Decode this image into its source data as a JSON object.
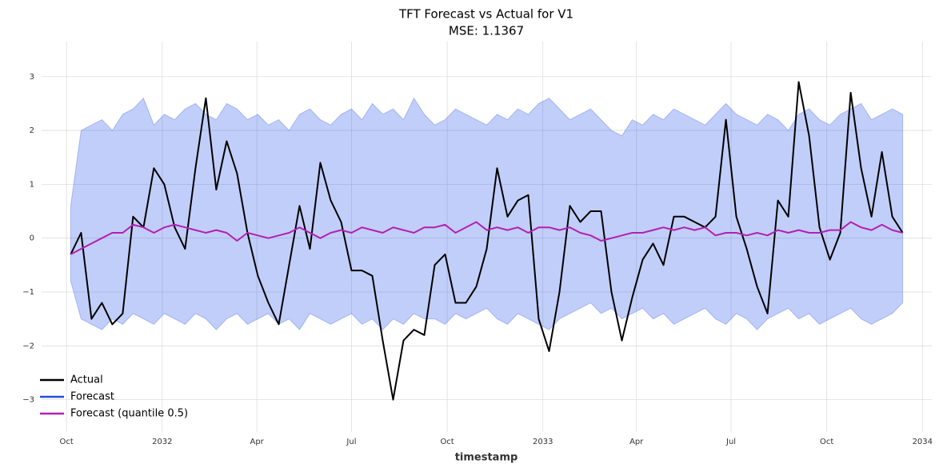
{
  "chart_data": {
    "type": "line",
    "title": "TFT Forecast vs Actual for V1",
    "subtitle": "MSE: 1.1367",
    "x_label": "timestamp",
    "x": [
      "2031-10-05",
      "2031-10-15",
      "2031-10-25",
      "2031-11-04",
      "2031-11-14",
      "2031-11-24",
      "2031-12-04",
      "2031-12-14",
      "2031-12-24",
      "2032-01-03",
      "2032-01-13",
      "2032-01-23",
      "2032-02-02",
      "2032-02-12",
      "2032-02-22",
      "2032-03-03",
      "2032-03-13",
      "2032-03-23",
      "2032-04-02",
      "2032-04-12",
      "2032-04-22",
      "2032-05-02",
      "2032-05-12",
      "2032-05-22",
      "2032-06-01",
      "2032-06-11",
      "2032-06-21",
      "2032-07-01",
      "2032-07-11",
      "2032-07-21",
      "2032-07-31",
      "2032-08-10",
      "2032-08-20",
      "2032-08-30",
      "2032-09-09",
      "2032-09-19",
      "2032-09-29",
      "2032-10-09",
      "2032-10-19",
      "2032-10-29",
      "2032-11-08",
      "2032-11-18",
      "2032-11-28",
      "2032-12-08",
      "2032-12-18",
      "2032-12-28",
      "2033-01-07",
      "2033-01-17",
      "2033-01-27",
      "2033-02-06",
      "2033-02-16",
      "2033-02-26",
      "2033-03-08",
      "2033-03-18",
      "2033-03-28",
      "2033-04-07",
      "2033-04-17",
      "2033-04-27",
      "2033-05-07",
      "2033-05-17",
      "2033-05-27",
      "2033-06-06",
      "2033-06-16",
      "2033-06-26",
      "2033-07-06",
      "2033-07-16",
      "2033-07-26",
      "2033-08-05",
      "2033-08-15",
      "2033-08-25",
      "2033-09-04",
      "2033-09-14",
      "2033-09-24",
      "2033-10-04",
      "2033-10-14",
      "2033-10-24",
      "2033-11-03",
      "2033-11-13",
      "2033-11-23",
      "2033-12-03",
      "2033-12-13"
    ],
    "series": [
      {
        "name": "Actual",
        "color": "#000000",
        "values": [
          -0.3,
          0.1,
          -1.5,
          -1.2,
          -1.6,
          -1.4,
          0.4,
          0.2,
          1.3,
          1.0,
          0.2,
          -0.2,
          1.3,
          2.6,
          0.9,
          1.8,
          1.2,
          0.1,
          -0.7,
          -1.2,
          -1.6,
          -0.5,
          0.6,
          -0.2,
          1.4,
          0.7,
          0.3,
          -0.6,
          -0.6,
          -0.7,
          -1.9,
          -3.0,
          -1.9,
          -1.7,
          -1.8,
          -0.5,
          -0.3,
          -1.2,
          -1.2,
          -0.9,
          -0.2,
          1.3,
          0.4,
          0.7,
          0.8,
          -1.5,
          -2.1,
          -1.0,
          0.6,
          0.3,
          0.5,
          0.5,
          -1.0,
          -1.9,
          -1.1,
          -0.4,
          -0.1,
          -0.5,
          0.4,
          0.4,
          0.3,
          0.2,
          0.4,
          2.2,
          0.4,
          -0.2,
          -0.9,
          -1.4,
          0.7,
          0.4,
          2.9,
          1.9,
          0.2,
          -0.4,
          0.1,
          2.7,
          1.3,
          0.4,
          1.6,
          0.4,
          0.1
        ]
      },
      {
        "name": "Forecast",
        "color": "#1f4ee8",
        "upper": [
          0.6,
          2.0,
          2.1,
          2.2,
          2.0,
          2.3,
          2.4,
          2.6,
          2.1,
          2.3,
          2.2,
          2.4,
          2.5,
          2.3,
          2.2,
          2.5,
          2.4,
          2.2,
          2.3,
          2.1,
          2.2,
          2.0,
          2.3,
          2.4,
          2.2,
          2.1,
          2.3,
          2.4,
          2.2,
          2.5,
          2.3,
          2.4,
          2.2,
          2.6,
          2.3,
          2.1,
          2.2,
          2.4,
          2.3,
          2.2,
          2.1,
          2.3,
          2.2,
          2.4,
          2.3,
          2.5,
          2.6,
          2.4,
          2.2,
          2.3,
          2.4,
          2.2,
          2.0,
          1.9,
          2.2,
          2.1,
          2.3,
          2.2,
          2.4,
          2.3,
          2.2,
          2.1,
          2.3,
          2.5,
          2.3,
          2.2,
          2.1,
          2.3,
          2.2,
          2.0,
          2.3,
          2.4,
          2.2,
          2.1,
          2.3,
          2.4,
          2.5,
          2.2,
          2.3,
          2.4,
          2.3
        ],
        "lower": [
          -0.8,
          -1.5,
          -1.6,
          -1.7,
          -1.5,
          -1.6,
          -1.4,
          -1.5,
          -1.6,
          -1.4,
          -1.5,
          -1.6,
          -1.4,
          -1.5,
          -1.7,
          -1.5,
          -1.4,
          -1.6,
          -1.5,
          -1.4,
          -1.6,
          -1.5,
          -1.7,
          -1.4,
          -1.5,
          -1.6,
          -1.5,
          -1.4,
          -1.6,
          -1.5,
          -1.7,
          -1.5,
          -1.6,
          -1.4,
          -1.5,
          -1.5,
          -1.6,
          -1.4,
          -1.5,
          -1.4,
          -1.3,
          -1.5,
          -1.6,
          -1.4,
          -1.5,
          -1.6,
          -1.7,
          -1.5,
          -1.4,
          -1.3,
          -1.2,
          -1.4,
          -1.3,
          -1.5,
          -1.4,
          -1.3,
          -1.5,
          -1.4,
          -1.6,
          -1.5,
          -1.4,
          -1.3,
          -1.5,
          -1.6,
          -1.4,
          -1.5,
          -1.7,
          -1.5,
          -1.4,
          -1.3,
          -1.5,
          -1.4,
          -1.6,
          -1.5,
          -1.4,
          -1.3,
          -1.5,
          -1.6,
          -1.5,
          -1.4,
          -1.2
        ]
      },
      {
        "name": "Forecast (quantile 0.5)",
        "color": "#b41fb4",
        "values": [
          -0.3,
          -0.2,
          -0.1,
          0,
          0.1,
          0.1,
          0.25,
          0.2,
          0.1,
          0.2,
          0.25,
          0.2,
          0.15,
          0.1,
          0.15,
          0.1,
          -0.05,
          0.1,
          0.05,
          0,
          0.05,
          0.1,
          0.2,
          0.1,
          0,
          0.1,
          0.15,
          0.1,
          0.2,
          0.15,
          0.1,
          0.2,
          0.15,
          0.1,
          0.2,
          0.2,
          0.25,
          0.1,
          0.2,
          0.3,
          0.15,
          0.2,
          0.15,
          0.2,
          0.1,
          0.2,
          0.2,
          0.15,
          0.2,
          0.1,
          0.05,
          -0.05,
          0,
          0.05,
          0.1,
          0.1,
          0.15,
          0.2,
          0.15,
          0.2,
          0.15,
          0.2,
          0.05,
          0.1,
          0.1,
          0.05,
          0.1,
          0.05,
          0.15,
          0.1,
          0.15,
          0.1,
          0.1,
          0.15,
          0.15,
          0.3,
          0.2,
          0.15,
          0.25,
          0.15,
          0.1
        ]
      }
    ],
    "xlim": [
      "2031-09-07",
      "2034-01-10"
    ],
    "xticks": [
      {
        "value": "2031-10-01",
        "label": "Oct"
      },
      {
        "value": "2032-01-01",
        "label": "2032"
      },
      {
        "value": "2032-04-01",
        "label": "Apr"
      },
      {
        "value": "2032-07-01",
        "label": "Jul"
      },
      {
        "value": "2032-10-01",
        "label": "Oct"
      },
      {
        "value": "2033-01-01",
        "label": "2033"
      },
      {
        "value": "2033-04-01",
        "label": "Apr"
      },
      {
        "value": "2033-07-01",
        "label": "Jul"
      },
      {
        "value": "2033-10-01",
        "label": "Oct"
      },
      {
        "value": "2034-01-01",
        "label": "2034"
      }
    ],
    "ylim": [
      -3.6,
      3.65
    ],
    "yticks": [
      {
        "value": -3,
        "label": "−3"
      },
      {
        "value": -2,
        "label": "−2"
      },
      {
        "value": -1,
        "label": "−1"
      },
      0,
      1,
      2,
      3
    ],
    "grid": true,
    "legend": "lower left"
  }
}
